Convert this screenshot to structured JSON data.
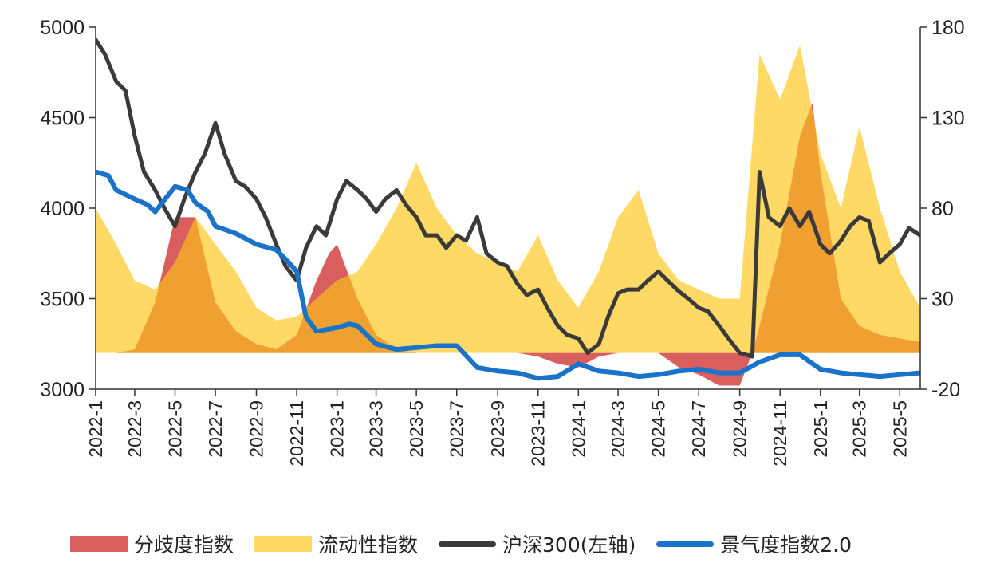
{
  "chart_data": {
    "type": "line",
    "title": "",
    "xlabel": "",
    "ylabel": "",
    "x_ticks": [
      "2022-1",
      "2022-3",
      "2022-5",
      "2022-7",
      "2022-9",
      "2022-11",
      "2023-1",
      "2023-3",
      "2023-5",
      "2023-7",
      "2023-9",
      "2023-11",
      "2024-1",
      "2024-3",
      "2024-5",
      "2024-7",
      "2024-9",
      "2024-11",
      "2025-1",
      "2025-3",
      "2025-5"
    ],
    "x_range": [
      "2022-01",
      "2025-06"
    ],
    "y_left": {
      "range": [
        3000,
        5000
      ],
      "ticks": [
        3000,
        3500,
        4000,
        4500,
        5000
      ]
    },
    "y_right": {
      "range": [
        -20,
        180
      ],
      "ticks": [
        -20,
        30,
        80,
        130,
        180
      ]
    },
    "baseline_right": 0,
    "grid": false,
    "legend_position": "bottom",
    "series": [
      {
        "name": "分歧度指数",
        "kind": "area",
        "axis": "right",
        "color": "#d95f5f",
        "points": [
          [
            "2022-01",
            0
          ],
          [
            "2022-02",
            0
          ],
          [
            "2022-03",
            2
          ],
          [
            "2022-04",
            28
          ],
          [
            "2022-05",
            75
          ],
          [
            "2022-06",
            75
          ],
          [
            "2022-07",
            28
          ],
          [
            "2022-08",
            12
          ],
          [
            "2022-09",
            5
          ],
          [
            "2022-10",
            2
          ],
          [
            "2022-11",
            10
          ],
          [
            "2022-12",
            40
          ],
          [
            "2022-12-20",
            55
          ],
          [
            "2023-01",
            60
          ],
          [
            "2023-02",
            30
          ],
          [
            "2023-03",
            10
          ],
          [
            "2023-04",
            2
          ],
          [
            "2023-05",
            0
          ],
          [
            "2023-06",
            0
          ],
          [
            "2023-07",
            0
          ],
          [
            "2023-08",
            0
          ],
          [
            "2023-09",
            0
          ],
          [
            "2023-10",
            0
          ],
          [
            "2023-11",
            -2
          ],
          [
            "2023-12",
            -6
          ],
          [
            "2024-01",
            -8
          ],
          [
            "2024-02",
            -2
          ],
          [
            "2024-03",
            0
          ],
          [
            "2024-04",
            0
          ],
          [
            "2024-05",
            0
          ],
          [
            "2024-06",
            -8
          ],
          [
            "2024-07",
            -12
          ],
          [
            "2024-08",
            -18
          ],
          [
            "2024-09",
            -18
          ],
          [
            "2024-09-20",
            0
          ],
          [
            "2024-10",
            15
          ],
          [
            "2024-11",
            60
          ],
          [
            "2024-12",
            120
          ],
          [
            "2024-12-20",
            138
          ],
          [
            "2025-01",
            100
          ],
          [
            "2025-02",
            30
          ],
          [
            "2025-03",
            15
          ],
          [
            "2025-04",
            10
          ],
          [
            "2025-05",
            8
          ],
          [
            "2025-06",
            6
          ]
        ]
      },
      {
        "name": "流动性指数",
        "kind": "area",
        "axis": "right",
        "color": "#ffd966",
        "points": [
          [
            "2022-01",
            80
          ],
          [
            "2022-02",
            60
          ],
          [
            "2022-03",
            40
          ],
          [
            "2022-04",
            35
          ],
          [
            "2022-05",
            50
          ],
          [
            "2022-06",
            75
          ],
          [
            "2022-07",
            60
          ],
          [
            "2022-08",
            45
          ],
          [
            "2022-09",
            25
          ],
          [
            "2022-10",
            18
          ],
          [
            "2022-11",
            20
          ],
          [
            "2022-12",
            30
          ],
          [
            "2023-01",
            40
          ],
          [
            "2023-02",
            45
          ],
          [
            "2023-03",
            60
          ],
          [
            "2023-04",
            80
          ],
          [
            "2023-05",
            105
          ],
          [
            "2023-06",
            80
          ],
          [
            "2023-07",
            65
          ],
          [
            "2023-08",
            55
          ],
          [
            "2023-09",
            50
          ],
          [
            "2023-10",
            45
          ],
          [
            "2023-11",
            65
          ],
          [
            "2023-12",
            40
          ],
          [
            "2024-01",
            25
          ],
          [
            "2024-02",
            45
          ],
          [
            "2024-03",
            75
          ],
          [
            "2024-04",
            90
          ],
          [
            "2024-05",
            55
          ],
          [
            "2024-06",
            40
          ],
          [
            "2024-07",
            35
          ],
          [
            "2024-08",
            30
          ],
          [
            "2024-09",
            30
          ],
          [
            "2024-10",
            165
          ],
          [
            "2024-11",
            140
          ],
          [
            "2024-12",
            170
          ],
          [
            "2025-01",
            110
          ],
          [
            "2025-02",
            80
          ],
          [
            "2025-03",
            125
          ],
          [
            "2025-04",
            80
          ],
          [
            "2025-05",
            45
          ],
          [
            "2025-06",
            25
          ]
        ]
      },
      {
        "name": "沪深300(左轴)",
        "kind": "line",
        "axis": "left",
        "color": "#3a3a3a",
        "points": [
          [
            "2022-01",
            4930
          ],
          [
            "2022-01-15",
            4850
          ],
          [
            "2022-02",
            4700
          ],
          [
            "2022-02-15",
            4650
          ],
          [
            "2022-03",
            4400
          ],
          [
            "2022-03-15",
            4200
          ],
          [
            "2022-04",
            4100
          ],
          [
            "2022-04-15",
            4000
          ],
          [
            "2022-05",
            3900
          ],
          [
            "2022-05-15",
            4050
          ],
          [
            "2022-06",
            4200
          ],
          [
            "2022-06-15",
            4300
          ],
          [
            "2022-07",
            4470
          ],
          [
            "2022-07-15",
            4300
          ],
          [
            "2022-08",
            4150
          ],
          [
            "2022-08-15",
            4120
          ],
          [
            "2022-09",
            4050
          ],
          [
            "2022-09-15",
            3950
          ],
          [
            "2022-10",
            3800
          ],
          [
            "2022-10-15",
            3680
          ],
          [
            "2022-11",
            3600
          ],
          [
            "2022-11-15",
            3780
          ],
          [
            "2022-12",
            3900
          ],
          [
            "2022-12-15",
            3850
          ],
          [
            "2023-01",
            4050
          ],
          [
            "2023-01-15",
            4150
          ],
          [
            "2023-02",
            4100
          ],
          [
            "2023-02-15",
            4050
          ],
          [
            "2023-03",
            3980
          ],
          [
            "2023-03-15",
            4050
          ],
          [
            "2023-04",
            4100
          ],
          [
            "2023-04-15",
            4020
          ],
          [
            "2023-05",
            3950
          ],
          [
            "2023-05-15",
            3850
          ],
          [
            "2023-06",
            3850
          ],
          [
            "2023-06-15",
            3780
          ],
          [
            "2023-07",
            3850
          ],
          [
            "2023-07-15",
            3820
          ],
          [
            "2023-08",
            3950
          ],
          [
            "2023-08-15",
            3750
          ],
          [
            "2023-09",
            3700
          ],
          [
            "2023-09-15",
            3680
          ],
          [
            "2023-10",
            3580
          ],
          [
            "2023-10-15",
            3520
          ],
          [
            "2023-11",
            3550
          ],
          [
            "2023-11-15",
            3450
          ],
          [
            "2023-12",
            3350
          ],
          [
            "2023-12-15",
            3300
          ],
          [
            "2024-01",
            3280
          ],
          [
            "2024-01-15",
            3200
          ],
          [
            "2024-02",
            3250
          ],
          [
            "2024-02-15",
            3400
          ],
          [
            "2024-03",
            3530
          ],
          [
            "2024-03-15",
            3550
          ],
          [
            "2024-04",
            3550
          ],
          [
            "2024-04-15",
            3600
          ],
          [
            "2024-05",
            3650
          ],
          [
            "2024-05-15",
            3600
          ],
          [
            "2024-06",
            3540
          ],
          [
            "2024-06-15",
            3500
          ],
          [
            "2024-07",
            3450
          ],
          [
            "2024-07-15",
            3430
          ],
          [
            "2024-08",
            3350
          ],
          [
            "2024-08-15",
            3280
          ],
          [
            "2024-09",
            3200
          ],
          [
            "2024-09-20",
            3180
          ],
          [
            "2024-10",
            4200
          ],
          [
            "2024-10-15",
            3950
          ],
          [
            "2024-11",
            3900
          ],
          [
            "2024-11-15",
            4000
          ],
          [
            "2024-12",
            3900
          ],
          [
            "2024-12-15",
            3980
          ],
          [
            "2025-01",
            3800
          ],
          [
            "2025-01-15",
            3750
          ],
          [
            "2025-02",
            3820
          ],
          [
            "2025-02-15",
            3900
          ],
          [
            "2025-03",
            3950
          ],
          [
            "2025-03-15",
            3930
          ],
          [
            "2025-04",
            3700
          ],
          [
            "2025-04-15",
            3750
          ],
          [
            "2025-05",
            3800
          ],
          [
            "2025-05-15",
            3890
          ],
          [
            "2025-06",
            3850
          ]
        ]
      },
      {
        "name": "景气度指数2.0",
        "kind": "line",
        "axis": "right",
        "color": "#1a73c8",
        "points": [
          [
            "2022-01",
            100
          ],
          [
            "2022-01-20",
            98
          ],
          [
            "2022-02",
            90
          ],
          [
            "2022-03",
            85
          ],
          [
            "2022-03-20",
            82
          ],
          [
            "2022-04",
            78
          ],
          [
            "2022-05",
            92
          ],
          [
            "2022-05-20",
            90
          ],
          [
            "2022-06",
            83
          ],
          [
            "2022-06-20",
            78
          ],
          [
            "2022-07",
            70
          ],
          [
            "2022-08",
            66
          ],
          [
            "2022-09",
            60
          ],
          [
            "2022-10",
            57
          ],
          [
            "2022-10-20",
            50
          ],
          [
            "2022-11",
            45
          ],
          [
            "2022-11-15",
            20
          ],
          [
            "2022-12",
            12
          ],
          [
            "2023-01",
            14
          ],
          [
            "2023-01-20",
            16
          ],
          [
            "2023-02",
            15
          ],
          [
            "2023-03",
            5
          ],
          [
            "2023-04",
            2
          ],
          [
            "2023-05",
            3
          ],
          [
            "2023-06",
            4
          ],
          [
            "2023-07",
            4
          ],
          [
            "2023-08",
            -8
          ],
          [
            "2023-09",
            -10
          ],
          [
            "2023-10",
            -11
          ],
          [
            "2023-11",
            -14
          ],
          [
            "2023-12",
            -13
          ],
          [
            "2024-01",
            -6
          ],
          [
            "2024-02",
            -10
          ],
          [
            "2024-03",
            -11
          ],
          [
            "2024-04",
            -13
          ],
          [
            "2024-05",
            -12
          ],
          [
            "2024-06",
            -10
          ],
          [
            "2024-07",
            -9
          ],
          [
            "2024-08",
            -11
          ],
          [
            "2024-09",
            -11
          ],
          [
            "2024-10",
            -5
          ],
          [
            "2024-11",
            -1
          ],
          [
            "2024-12",
            -1
          ],
          [
            "2025-01",
            -9
          ],
          [
            "2025-02",
            -11
          ],
          [
            "2025-03",
            -12
          ],
          [
            "2025-04",
            -13
          ],
          [
            "2025-05",
            -12
          ],
          [
            "2025-06",
            -11
          ]
        ]
      }
    ]
  },
  "legend": [
    {
      "label": "分歧度指数",
      "style": "area",
      "color": "#d95f5f"
    },
    {
      "label": "流动性指数",
      "style": "area",
      "color": "#ffd966"
    },
    {
      "label": "沪深300(左轴)",
      "style": "line",
      "color": "#3a3a3a"
    },
    {
      "label": "景气度指数2.0",
      "style": "line",
      "color": "#1a73c8"
    }
  ],
  "colors": {
    "overlap": "#f0a030",
    "axis": "#333333"
  }
}
